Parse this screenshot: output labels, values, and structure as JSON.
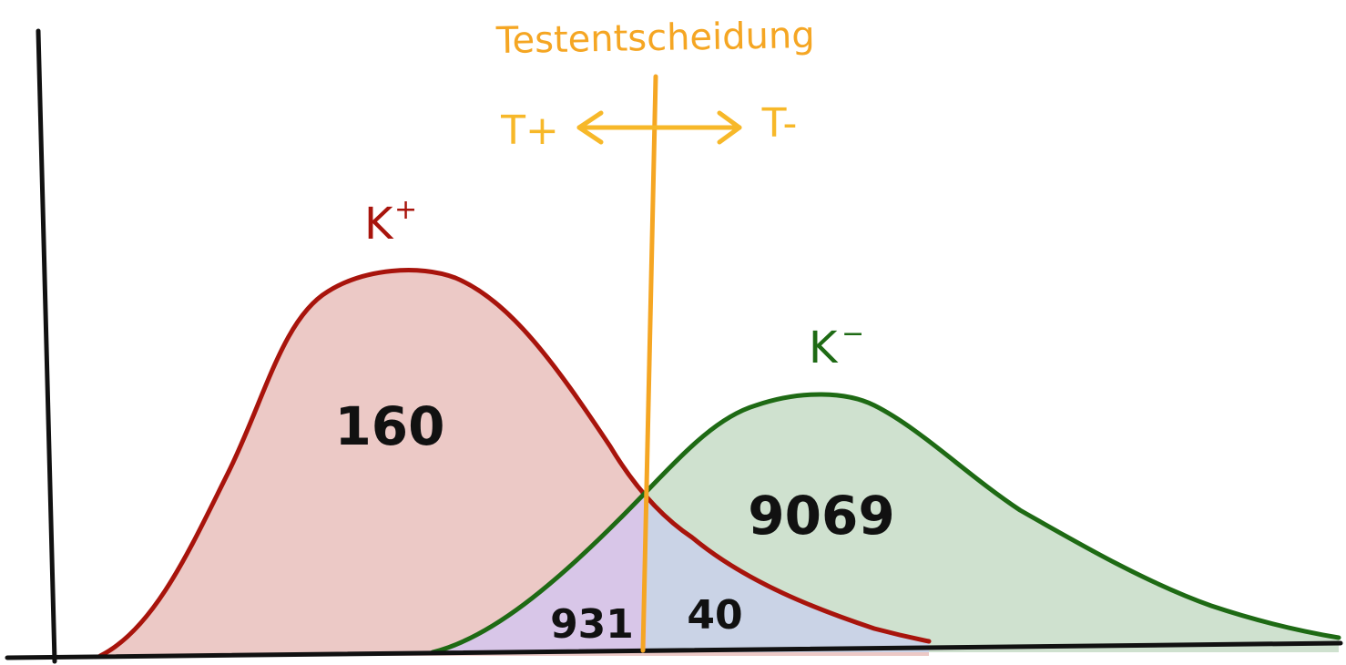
{
  "diagram": {
    "title": "Testentscheidung",
    "decision_left": "T+",
    "decision_right": "T-",
    "positive_label": "K",
    "positive_sup": "+",
    "negative_label": "K",
    "negative_sup": "−",
    "true_positive_count": "160",
    "true_negative_count": "9069",
    "false_positive_count": "931",
    "false_negative_count": "40"
  },
  "colors": {
    "positive_stroke": "#a8140c",
    "positive_fill": "#ecc9c6",
    "negative_stroke": "#1e6a14",
    "negative_fill": "#cfe1cf",
    "overlap_left_fill": "#d8c6e8",
    "overlap_right_fill": "#cad3e6",
    "threshold": "#f5a623",
    "axis": "#111111"
  }
}
